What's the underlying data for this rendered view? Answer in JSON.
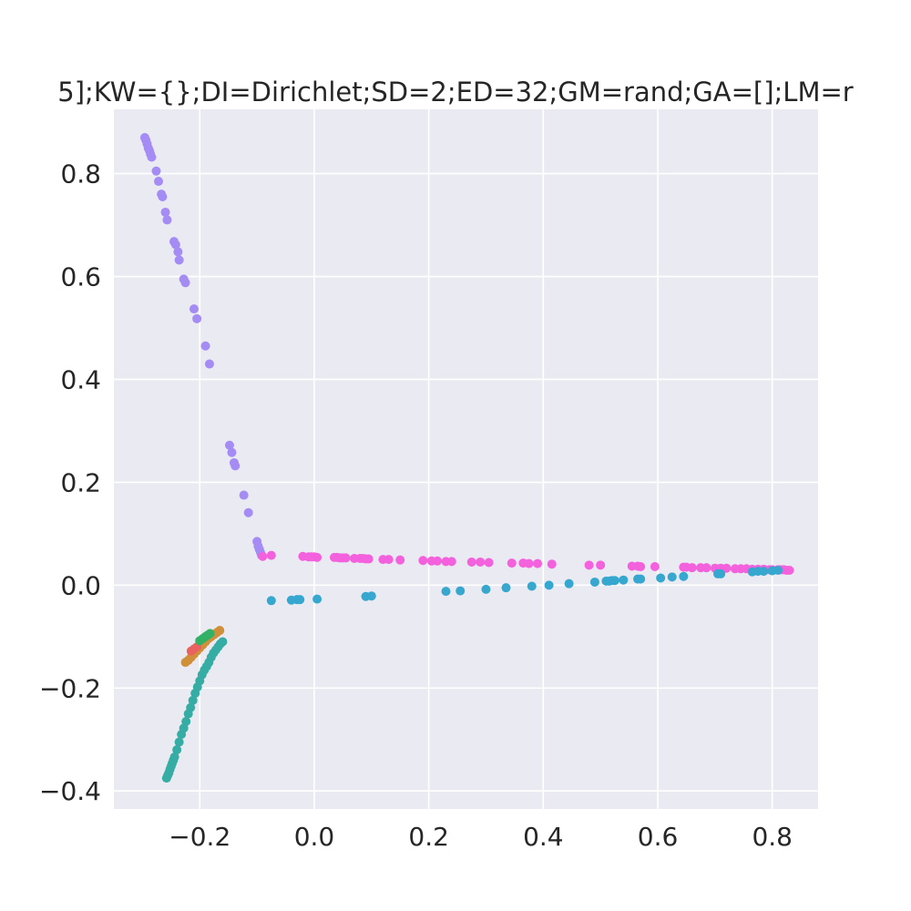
{
  "chart_data": {
    "type": "scatter",
    "title": "5];KW={};DI=Dirichlet;SD=2;ED=32;GM=rand;GA=[];LM=r",
    "xlabel": "",
    "ylabel": "",
    "xlim": [
      -0.35,
      0.88
    ],
    "ylim": [
      -0.435,
      0.925
    ],
    "grid": true,
    "background": "#eaeaf2",
    "x_ticks": [
      -0.2,
      0.0,
      0.2,
      0.4,
      0.6,
      0.8
    ],
    "x_tick_labels": [
      "−0.2",
      "0.0",
      "0.2",
      "0.4",
      "0.6",
      "0.8"
    ],
    "y_ticks": [
      -0.4,
      -0.2,
      0.0,
      0.2,
      0.4,
      0.6,
      0.8
    ],
    "y_tick_labels": [
      "−0.4",
      "−0.2",
      "0.0",
      "0.2",
      "0.4",
      "0.6",
      "0.8"
    ],
    "series": [
      {
        "color": "#a48cf4",
        "x": [
          -0.296,
          -0.294,
          -0.292,
          -0.29,
          -0.288,
          -0.286,
          -0.284,
          -0.276,
          -0.272,
          -0.267,
          -0.265,
          -0.26,
          -0.257,
          -0.245,
          -0.242,
          -0.238,
          -0.236,
          -0.228,
          -0.225,
          -0.21,
          -0.205,
          -0.19,
          -0.183,
          -0.148,
          -0.144,
          -0.14,
          -0.138,
          -0.123,
          -0.115,
          -0.1,
          -0.098,
          -0.096,
          -0.094,
          -0.092
        ],
        "y": [
          0.87,
          0.865,
          0.858,
          0.85,
          0.845,
          0.838,
          0.832,
          0.805,
          0.785,
          0.76,
          0.755,
          0.725,
          0.71,
          0.668,
          0.662,
          0.648,
          0.632,
          0.595,
          0.588,
          0.537,
          0.518,
          0.465,
          0.43,
          0.272,
          0.258,
          0.238,
          0.232,
          0.175,
          0.141,
          0.085,
          0.076,
          0.07,
          0.064,
          0.058
        ]
      },
      {
        "color": "#f461dd",
        "x": [
          -0.09,
          -0.075,
          -0.02,
          -0.01,
          -0.005,
          0.0,
          0.005,
          0.035,
          0.04,
          0.045,
          0.05,
          0.055,
          0.07,
          0.08,
          0.085,
          0.09,
          0.095,
          0.12,
          0.13,
          0.15,
          0.19,
          0.205,
          0.215,
          0.23,
          0.24,
          0.275,
          0.29,
          0.305,
          0.345,
          0.365,
          0.375,
          0.39,
          0.415,
          0.48,
          0.5,
          0.555,
          0.565,
          0.57,
          0.595,
          0.645,
          0.65,
          0.66,
          0.675,
          0.685,
          0.7,
          0.71,
          0.72,
          0.735,
          0.745,
          0.755,
          0.765,
          0.775,
          0.785,
          0.795,
          0.8,
          0.81,
          0.815,
          0.82,
          0.825,
          0.83
        ],
        "y": [
          0.056,
          0.058,
          0.056,
          0.055,
          0.055,
          0.055,
          0.054,
          0.054,
          0.054,
          0.053,
          0.053,
          0.053,
          0.052,
          0.052,
          0.052,
          0.051,
          0.051,
          0.05,
          0.05,
          0.049,
          0.048,
          0.047,
          0.047,
          0.046,
          0.046,
          0.045,
          0.045,
          0.044,
          0.043,
          0.043,
          0.042,
          0.042,
          0.041,
          0.039,
          0.039,
          0.037,
          0.037,
          0.036,
          0.036,
          0.035,
          0.035,
          0.034,
          0.034,
          0.034,
          0.033,
          0.033,
          0.033,
          0.032,
          0.032,
          0.032,
          0.031,
          0.031,
          0.031,
          0.03,
          0.03,
          0.03,
          0.03,
          0.03,
          0.029,
          0.029
        ]
      },
      {
        "color": "#36a7cf",
        "x": [
          -0.075,
          -0.04,
          -0.03,
          -0.025,
          0.005,
          0.09,
          0.1,
          0.23,
          0.255,
          0.3,
          0.335,
          0.38,
          0.41,
          0.445,
          0.49,
          0.51,
          0.515,
          0.52,
          0.525,
          0.54,
          0.565,
          0.57,
          0.605,
          0.625,
          0.645,
          0.705,
          0.71,
          0.765,
          0.775,
          0.785,
          0.8,
          0.81
        ],
        "y": [
          -0.03,
          -0.029,
          -0.028,
          -0.028,
          -0.027,
          -0.022,
          -0.021,
          -0.012,
          -0.011,
          -0.008,
          -0.005,
          -0.002,
          0.0,
          0.003,
          0.006,
          0.008,
          0.008,
          0.009,
          0.009,
          0.01,
          0.012,
          0.012,
          0.014,
          0.016,
          0.017,
          0.022,
          0.022,
          0.026,
          0.027,
          0.027,
          0.028,
          0.029
        ]
      },
      {
        "color": "#36ada4",
        "x": [
          -0.258,
          -0.256,
          -0.254,
          -0.252,
          -0.25,
          -0.248,
          -0.246,
          -0.244,
          -0.24,
          -0.236,
          -0.232,
          -0.228,
          -0.224,
          -0.22,
          -0.216,
          -0.212,
          -0.208,
          -0.204,
          -0.2,
          -0.196,
          -0.192,
          -0.188,
          -0.184,
          -0.18,
          -0.176,
          -0.172,
          -0.168,
          -0.164,
          -0.16
        ],
        "y": [
          -0.375,
          -0.37,
          -0.365,
          -0.358,
          -0.352,
          -0.346,
          -0.34,
          -0.334,
          -0.32,
          -0.305,
          -0.29,
          -0.278,
          -0.265,
          -0.25,
          -0.238,
          -0.224,
          -0.21,
          -0.198,
          -0.186,
          -0.174,
          -0.165,
          -0.158,
          -0.15,
          -0.14,
          -0.132,
          -0.126,
          -0.12,
          -0.114,
          -0.11
        ]
      },
      {
        "color": "#d0903a",
        "x": [
          -0.225,
          -0.22,
          -0.215,
          -0.21,
          -0.205,
          -0.2,
          -0.195,
          -0.19,
          -0.185,
          -0.18,
          -0.175,
          -0.17,
          -0.165
        ],
        "y": [
          -0.15,
          -0.146,
          -0.14,
          -0.134,
          -0.128,
          -0.122,
          -0.116,
          -0.11,
          -0.104,
          -0.1,
          -0.096,
          -0.092,
          -0.088
        ]
      },
      {
        "color": "#e8635f",
        "x": [
          -0.215,
          -0.21,
          -0.205
        ],
        "y": [
          -0.128,
          -0.124,
          -0.12
        ]
      },
      {
        "color": "#32b166",
        "x": [
          -0.2,
          -0.195,
          -0.19,
          -0.186,
          -0.182
        ],
        "y": [
          -0.108,
          -0.104,
          -0.1,
          -0.097,
          -0.094
        ]
      }
    ]
  }
}
